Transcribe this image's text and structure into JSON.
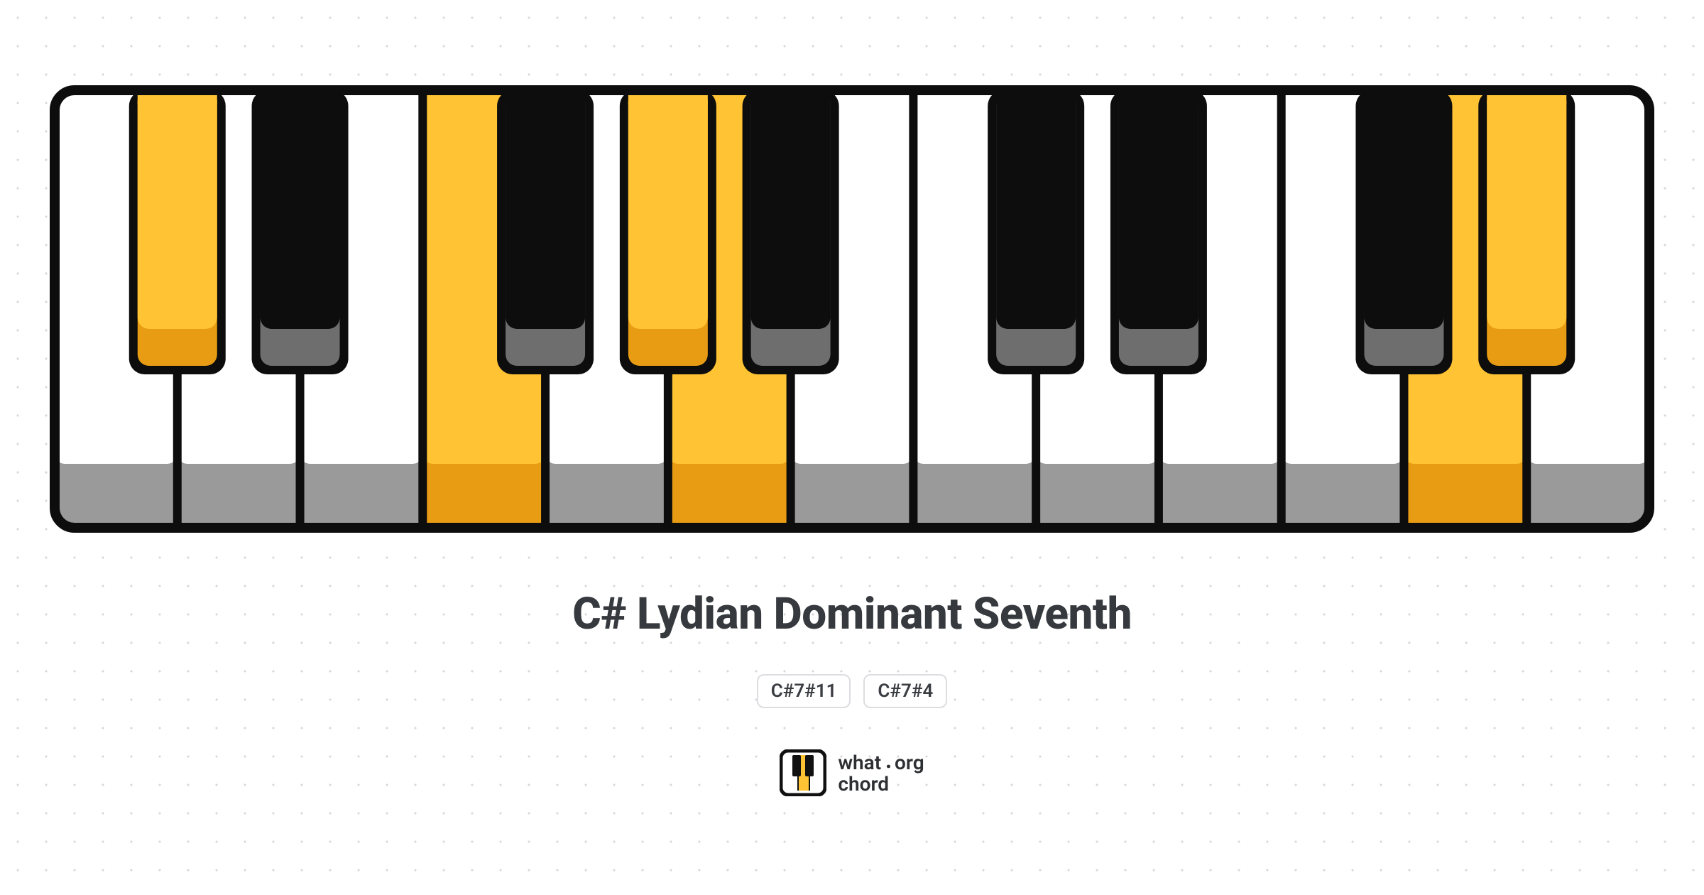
{
  "diagram": {
    "type": "piano-keyboard",
    "title": "C# Lydian Dominant Seventh",
    "title_fontsize": 62,
    "title_color": "#363a3e",
    "symbols": [
      "C#7#11",
      "C#7#4"
    ],
    "chip_border_color": "#dcdde0",
    "chip_text_color": "#3a3d41",
    "chip_fontsize": 26,
    "background_color": "#ffffff",
    "dot_grid_color": "#d8d8dc",
    "dot_grid_spacing": 40,
    "keyboard": {
      "outline_color": "#0d0d0d",
      "outline_width": 14,
      "outer_radius": 28,
      "white_key_fill": "#ffffff",
      "white_key_shadow": "#9a9a9a",
      "black_key_fill": "#0d0d0d",
      "black_key_shadow": "#6e6e6e",
      "highlight_fill": "#ffc334",
      "highlight_shadow": "#e89c14",
      "white_key_count": 13,
      "white_keys": [
        {
          "index": 0,
          "note": "C",
          "highlighted": false
        },
        {
          "index": 1,
          "note": "D",
          "highlighted": false
        },
        {
          "index": 2,
          "note": "E",
          "highlighted": false
        },
        {
          "index": 3,
          "note": "F",
          "highlighted": true
        },
        {
          "index": 4,
          "note": "G",
          "highlighted": false
        },
        {
          "index": 5,
          "note": "A",
          "highlighted": true
        },
        {
          "index": 6,
          "note": "B",
          "highlighted": false
        },
        {
          "index": 7,
          "note": "C",
          "highlighted": false
        },
        {
          "index": 8,
          "note": "D",
          "highlighted": false
        },
        {
          "index": 9,
          "note": "E",
          "highlighted": false
        },
        {
          "index": 10,
          "note": "F",
          "highlighted": false
        },
        {
          "index": 11,
          "note": "G",
          "highlighted": true
        },
        {
          "index": 12,
          "note": "A",
          "highlighted": false
        }
      ],
      "black_keys": [
        {
          "after_white_index": 0,
          "note": "C#",
          "highlighted": true
        },
        {
          "after_white_index": 1,
          "note": "D#",
          "highlighted": false
        },
        {
          "after_white_index": 3,
          "note": "F#",
          "highlighted": false
        },
        {
          "after_white_index": 4,
          "note": "G#",
          "highlighted": true
        },
        {
          "after_white_index": 5,
          "note": "A#",
          "highlighted": false
        },
        {
          "after_white_index": 7,
          "note": "C#",
          "highlighted": false
        },
        {
          "after_white_index": 8,
          "note": "D#",
          "highlighted": false
        },
        {
          "after_white_index": 10,
          "note": "F#",
          "highlighted": false
        },
        {
          "after_white_index": 11,
          "note": "G#",
          "highlighted": true
        }
      ],
      "white_key_width": 172,
      "white_key_height": 602,
      "white_shadow_height": 104,
      "black_key_width": 112,
      "black_key_height": 388,
      "black_shadow_height": 52,
      "divider_width": 12
    }
  },
  "brand": {
    "line1_left": "what",
    "line1_dot": ".",
    "line1_right": "org",
    "line2": "chord",
    "logo_colors": {
      "border": "#111111",
      "white": "#ffffff",
      "yellow": "#ffc334",
      "black": "#111111"
    }
  }
}
